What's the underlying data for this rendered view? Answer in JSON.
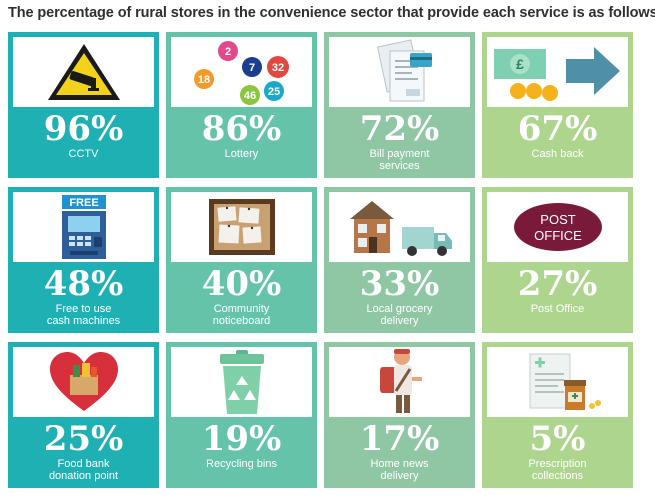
{
  "title": "The percentage of rural stores in the convenience sector that provide each service is as follows:",
  "colors": {
    "teal": "#1fb0b4",
    "mint": "#65c3a9",
    "sage": "#8fc7a5",
    "lime": "#add58e"
  },
  "services": [
    {
      "percent": "96%",
      "label": "CCTV",
      "icon": "cctv-warning-icon"
    },
    {
      "percent": "86%",
      "label": "Lottery",
      "icon": "lottery-balls-icon",
      "balls": [
        "2",
        "7",
        "32",
        "18",
        "46",
        "25"
      ]
    },
    {
      "percent": "72%",
      "label": "Bill payment\nservices",
      "icon": "bill-payment-icon"
    },
    {
      "percent": "67%",
      "label": "Cash back",
      "icon": "cash-back-icon",
      "coin_symbol": "£"
    },
    {
      "percent": "48%",
      "label": "Free to use\ncash machines",
      "icon": "cash-machine-icon",
      "sign": "FREE"
    },
    {
      "percent": "40%",
      "label": "Community\nnoticeboard",
      "icon": "noticeboard-icon"
    },
    {
      "percent": "33%",
      "label": "Local grocery\ndelivery",
      "icon": "delivery-van-icon"
    },
    {
      "percent": "27%",
      "label": "Post Office",
      "icon": "post-office-icon",
      "sign_line1": "POST",
      "sign_line2": "OFFICE"
    },
    {
      "percent": "25%",
      "label": "Food bank\ndonation point",
      "icon": "food-bank-heart-icon"
    },
    {
      "percent": "19%",
      "label": "Recycling bins",
      "icon": "recycling-bin-icon"
    },
    {
      "percent": "17%",
      "label": "Home news\ndelivery",
      "icon": "newspaper-delivery-icon"
    },
    {
      "percent": "5%",
      "label": "Prescription\ncollections",
      "icon": "prescription-icon"
    }
  ]
}
